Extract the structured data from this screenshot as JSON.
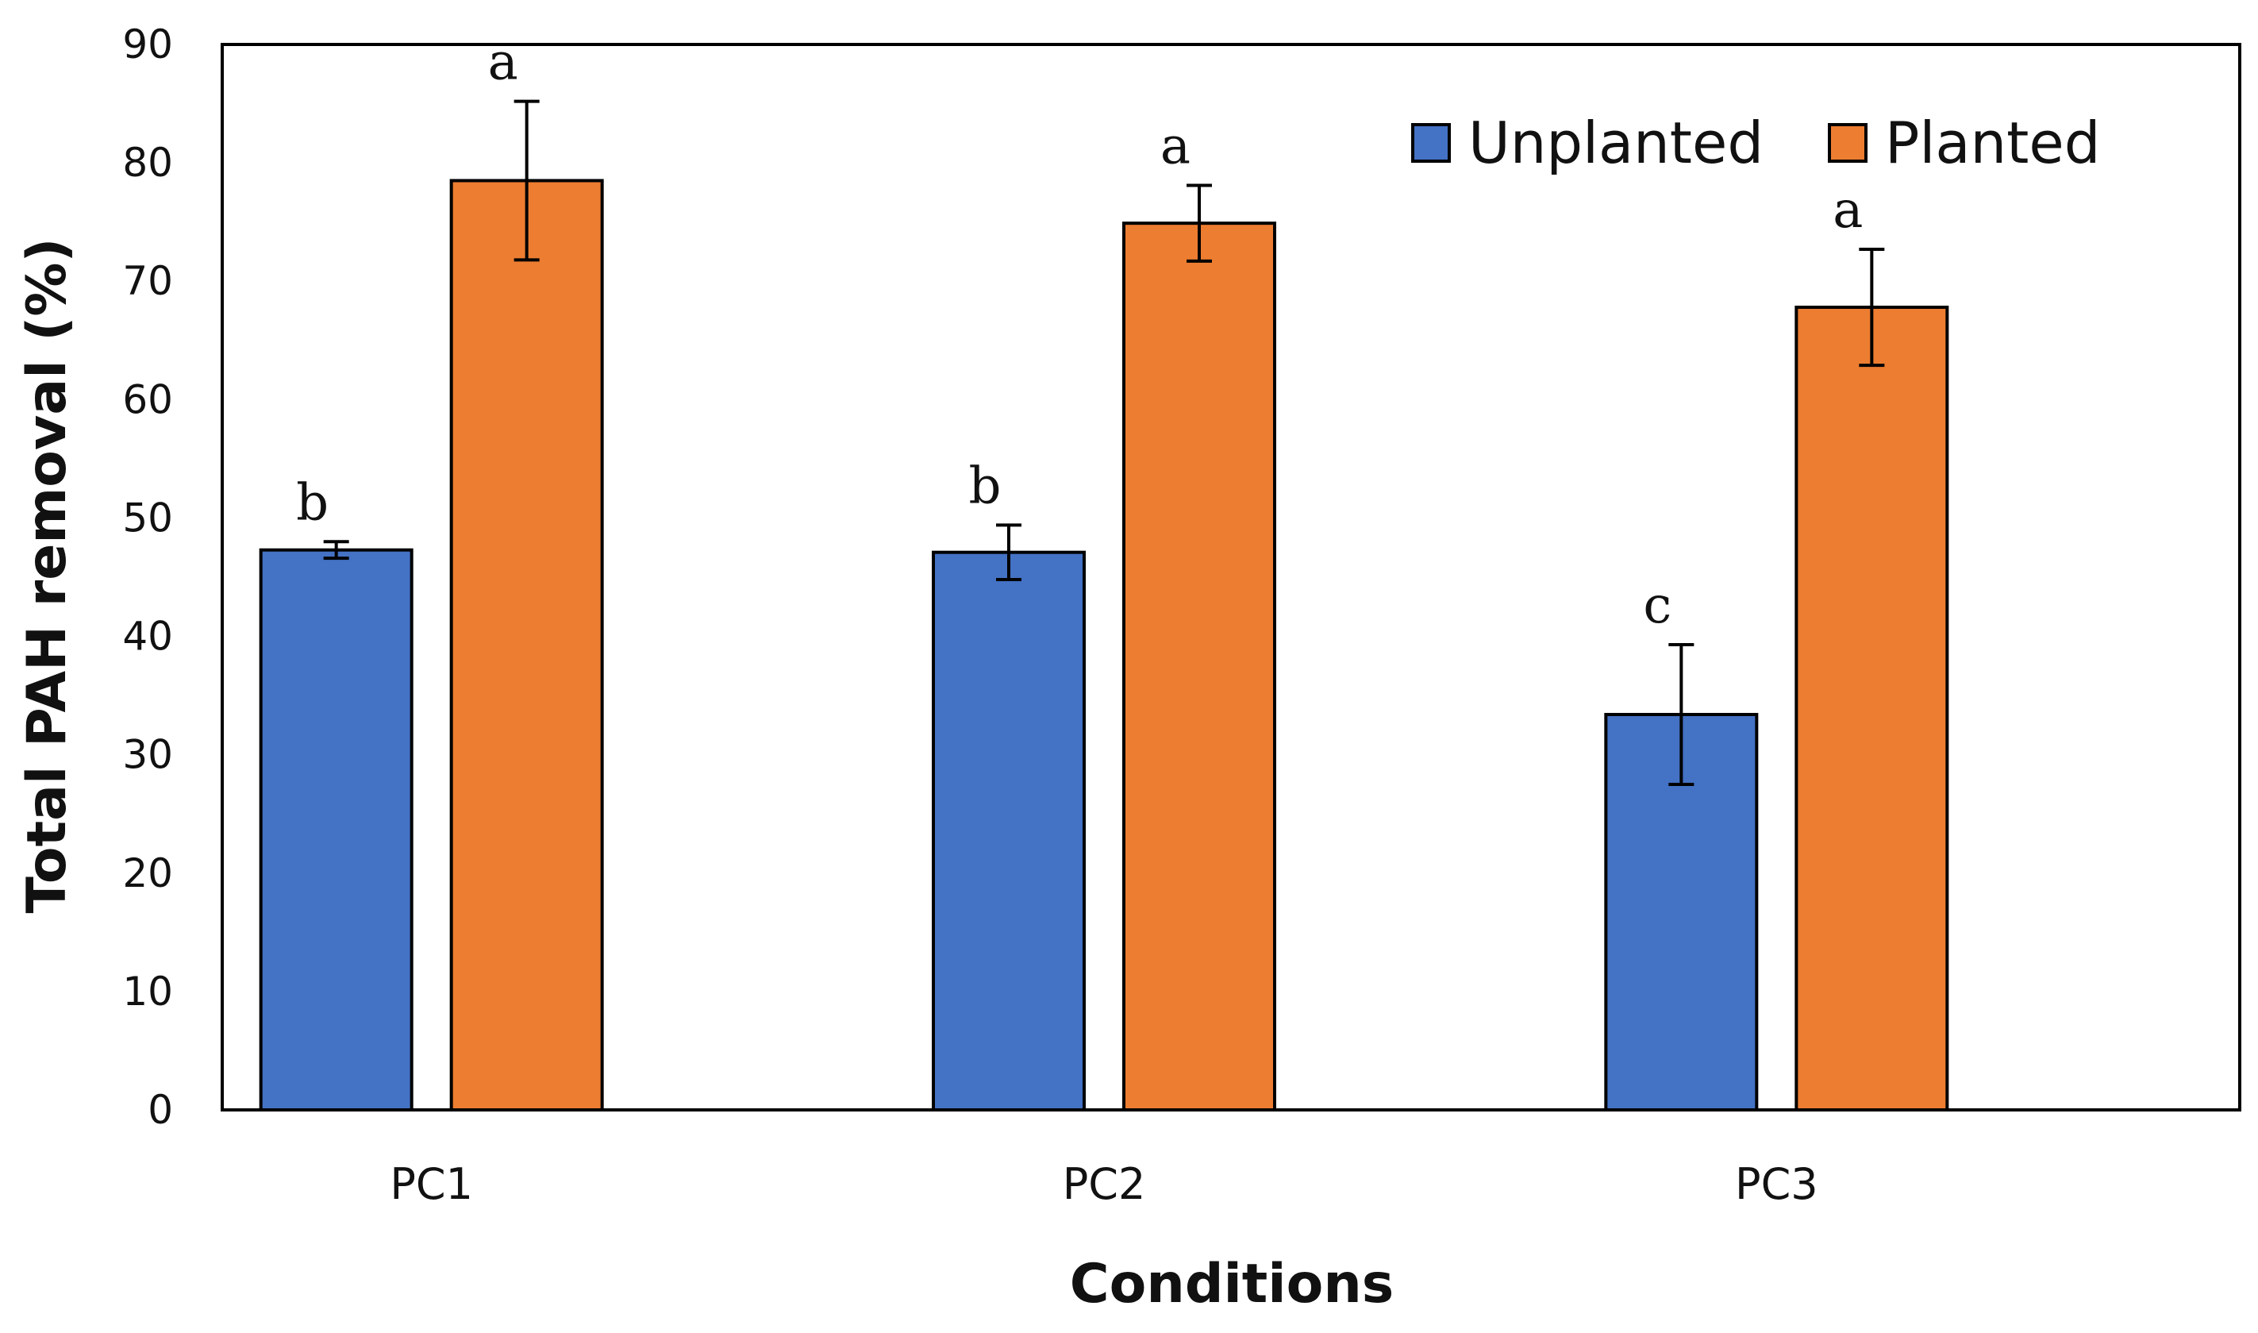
{
  "chart_data": {
    "type": "bar",
    "title": "",
    "xlabel": "Conditions",
    "ylabel": "Total PAH removal (%)",
    "ylim": [
      0,
      90
    ],
    "yticks": [
      0,
      10,
      20,
      30,
      40,
      50,
      60,
      70,
      80,
      90
    ],
    "categories": [
      "PC1",
      "PC2",
      "PC3"
    ],
    "series": [
      {
        "name": "Unplanted",
        "color": "#4472C4",
        "values": [
          47.3,
          47.1,
          33.4
        ],
        "errors": [
          0.7,
          2.3,
          5.9
        ],
        "labels": [
          "b",
          "b",
          "c"
        ]
      },
      {
        "name": "Planted",
        "color": "#ED7D31",
        "values": [
          78.5,
          74.9,
          67.8
        ],
        "errors": [
          6.7,
          3.2,
          4.9
        ],
        "labels": [
          "a",
          "a",
          "a"
        ]
      }
    ],
    "legend": {
      "position": "top-right",
      "entries": [
        "Unplanted",
        "Planted"
      ]
    }
  }
}
